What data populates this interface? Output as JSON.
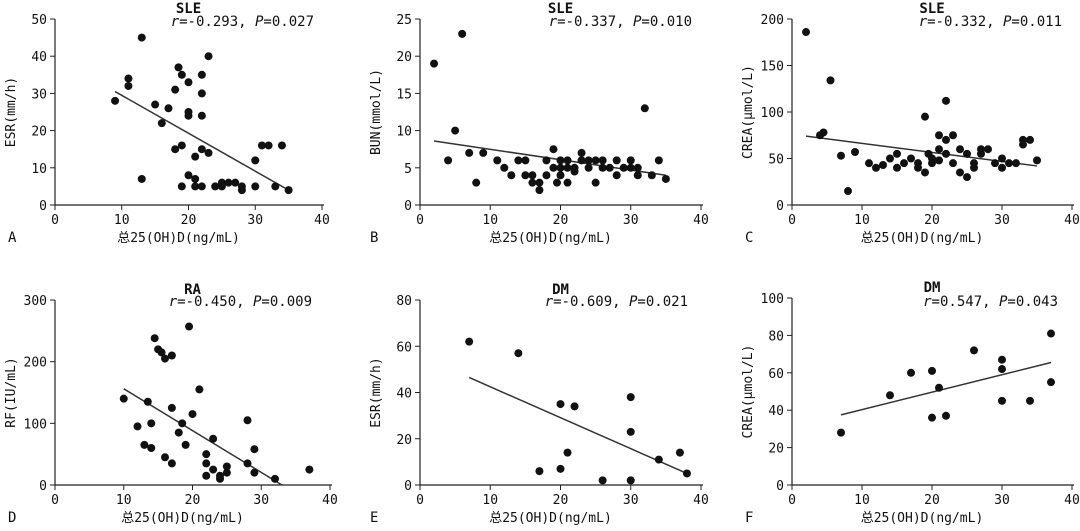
{
  "figure": {
    "x_axis_label": "总25(OH)D(ng/mL)"
  },
  "chart_data": [
    {
      "type": "scatter",
      "panel": "A",
      "title": "SLE",
      "stat": {
        "r_label": "r",
        "r_value": "=-0.293, ",
        "p_label": "P",
        "p_value": "=0.027"
      },
      "xlabel": "总25(OH)D(ng/mL)",
      "ylabel": "ESR(mm/h)",
      "xlim": [
        0,
        40
      ],
      "ylim": [
        0,
        50
      ],
      "xticks": [
        0,
        10,
        20,
        30,
        40
      ],
      "yticks": [
        0,
        10,
        20,
        30,
        40,
        50
      ],
      "trendline": [
        [
          9,
          30.5
        ],
        [
          35,
          4
        ]
      ],
      "points": [
        [
          9,
          28
        ],
        [
          11,
          32
        ],
        [
          11,
          34
        ],
        [
          13,
          45
        ],
        [
          13,
          7
        ],
        [
          15,
          27
        ],
        [
          16,
          22
        ],
        [
          17,
          26
        ],
        [
          18,
          31
        ],
        [
          18,
          15
        ],
        [
          18.5,
          37
        ],
        [
          19,
          35
        ],
        [
          19,
          16
        ],
        [
          19,
          5
        ],
        [
          20,
          33
        ],
        [
          20,
          25
        ],
        [
          20,
          24
        ],
        [
          20,
          8
        ],
        [
          21,
          13
        ],
        [
          21,
          7
        ],
        [
          21,
          5
        ],
        [
          22,
          35
        ],
        [
          22,
          30
        ],
        [
          22,
          24
        ],
        [
          22,
          15
        ],
        [
          22,
          5
        ],
        [
          23,
          40
        ],
        [
          23,
          14
        ],
        [
          24,
          5
        ],
        [
          25,
          5
        ],
        [
          25,
          6
        ],
        [
          26,
          6
        ],
        [
          27,
          6
        ],
        [
          28,
          4
        ],
        [
          28,
          5
        ],
        [
          30,
          12
        ],
        [
          30,
          5
        ],
        [
          31,
          16
        ],
        [
          32,
          16
        ],
        [
          33,
          5
        ],
        [
          34,
          16
        ],
        [
          35,
          4
        ]
      ]
    },
    {
      "type": "scatter",
      "panel": "B",
      "title": "SLE",
      "stat": {
        "r_label": "r",
        "r_value": "=-0.337, ",
        "p_label": "P",
        "p_value": "=0.010"
      },
      "xlabel": "总25(OH)D(ng/mL)",
      "ylabel": "BUN(mmol/L)",
      "xlim": [
        0,
        40
      ],
      "ylim": [
        0,
        25
      ],
      "xticks": [
        0,
        10,
        20,
        30,
        40
      ],
      "yticks": [
        0,
        5,
        10,
        15,
        20,
        25
      ],
      "trendline": [
        [
          2,
          8.6
        ],
        [
          35,
          4
        ]
      ],
      "points": [
        [
          2,
          19
        ],
        [
          4,
          6
        ],
        [
          5,
          10
        ],
        [
          6,
          23
        ],
        [
          7,
          7
        ],
        [
          8,
          3
        ],
        [
          9,
          7
        ],
        [
          11,
          6
        ],
        [
          12,
          5
        ],
        [
          13,
          4
        ],
        [
          14,
          6
        ],
        [
          15,
          4
        ],
        [
          15,
          6
        ],
        [
          16,
          3
        ],
        [
          16,
          4
        ],
        [
          17,
          2
        ],
        [
          17,
          3
        ],
        [
          18,
          6
        ],
        [
          18,
          4
        ],
        [
          19,
          7.5
        ],
        [
          19,
          5
        ],
        [
          19.5,
          3
        ],
        [
          20,
          6
        ],
        [
          20,
          5
        ],
        [
          20,
          4
        ],
        [
          21,
          3
        ],
        [
          21,
          5
        ],
        [
          21,
          6
        ],
        [
          22,
          4.5
        ],
        [
          22,
          5
        ],
        [
          23,
          6
        ],
        [
          23,
          7
        ],
        [
          24,
          5
        ],
        [
          24,
          6
        ],
        [
          25,
          6
        ],
        [
          25,
          3
        ],
        [
          26,
          5
        ],
        [
          26,
          6
        ],
        [
          27,
          5
        ],
        [
          28,
          6
        ],
        [
          28,
          4
        ],
        [
          29,
          5
        ],
        [
          30,
          6
        ],
        [
          30,
          5
        ],
        [
          31,
          4
        ],
        [
          31,
          5
        ],
        [
          32,
          13
        ],
        [
          33,
          4
        ],
        [
          34,
          6
        ],
        [
          35,
          3.5
        ]
      ]
    },
    {
      "type": "scatter",
      "panel": "C",
      "title": "SLE",
      "stat": {
        "r_label": "r",
        "r_value": "=-0.332, ",
        "p_label": "P",
        "p_value": "=0.011"
      },
      "xlabel": "总25(OH)D(ng/mL)",
      "ylabel": "CREA(μmol/L)",
      "xlim": [
        0,
        40
      ],
      "ylim": [
        0,
        200
      ],
      "xticks": [
        0,
        10,
        20,
        30,
        40
      ],
      "yticks": [
        0,
        50,
        100,
        150,
        200
      ],
      "trendline": [
        [
          2,
          74
        ],
        [
          35,
          42
        ]
      ],
      "points": [
        [
          2,
          186
        ],
        [
          4,
          75
        ],
        [
          4.5,
          78
        ],
        [
          5.5,
          134
        ],
        [
          7,
          53
        ],
        [
          8,
          15
        ],
        [
          9,
          57
        ],
        [
          11,
          45
        ],
        [
          12,
          40
        ],
        [
          13,
          43
        ],
        [
          14,
          50
        ],
        [
          15,
          55
        ],
        [
          15,
          40
        ],
        [
          16,
          45
        ],
        [
          17,
          50
        ],
        [
          18,
          40
        ],
        [
          18,
          45
        ],
        [
          19,
          35
        ],
        [
          19,
          95
        ],
        [
          19.5,
          55
        ],
        [
          20,
          45
        ],
        [
          20,
          50
        ],
        [
          21,
          75
        ],
        [
          21,
          60
        ],
        [
          21,
          48
        ],
        [
          22,
          55
        ],
        [
          22,
          112
        ],
        [
          22,
          70
        ],
        [
          23,
          45
        ],
        [
          23,
          75
        ],
        [
          24,
          60
        ],
        [
          24,
          35
        ],
        [
          25,
          55
        ],
        [
          25,
          30
        ],
        [
          26,
          40
        ],
        [
          26,
          45
        ],
        [
          27,
          60
        ],
        [
          27,
          55
        ],
        [
          28,
          60
        ],
        [
          29,
          45
        ],
        [
          30,
          50
        ],
        [
          30,
          40
        ],
        [
          31,
          45
        ],
        [
          32,
          45
        ],
        [
          33,
          70
        ],
        [
          33,
          65
        ],
        [
          34,
          70
        ],
        [
          35,
          48
        ]
      ]
    },
    {
      "type": "scatter",
      "panel": "D",
      "title": "RA",
      "stat": {
        "r_label": "r",
        "r_value": "=-0.450, ",
        "p_label": "P",
        "p_value": "=0.009"
      },
      "xlabel": "总25(OH)D(ng/mL)",
      "ylabel": "RF(IU/mL)",
      "xlim": [
        0,
        40
      ],
      "ylim": [
        0,
        300
      ],
      "xticks": [
        0,
        10,
        20,
        30,
        40
      ],
      "yticks": [
        0,
        100,
        200,
        300
      ],
      "trendline": [
        [
          10,
          156
        ],
        [
          33,
          0
        ]
      ],
      "points": [
        [
          10,
          140
        ],
        [
          12,
          95
        ],
        [
          13,
          65
        ],
        [
          13.5,
          135
        ],
        [
          14,
          60
        ],
        [
          14,
          100
        ],
        [
          14.5,
          238
        ],
        [
          15,
          220
        ],
        [
          15.5,
          215
        ],
        [
          16,
          45
        ],
        [
          16,
          205
        ],
        [
          17,
          210
        ],
        [
          17,
          35
        ],
        [
          17,
          125
        ],
        [
          18,
          85
        ],
        [
          18.5,
          100
        ],
        [
          19,
          65
        ],
        [
          19.5,
          257
        ],
        [
          20,
          115
        ],
        [
          21,
          155
        ],
        [
          22,
          50
        ],
        [
          22,
          15
        ],
        [
          22,
          35
        ],
        [
          23,
          25
        ],
        [
          23,
          75
        ],
        [
          24,
          10
        ],
        [
          24,
          15
        ],
        [
          25,
          30
        ],
        [
          25,
          20
        ],
        [
          28,
          105
        ],
        [
          28,
          35
        ],
        [
          29,
          20
        ],
        [
          29,
          58
        ],
        [
          32,
          10
        ],
        [
          37,
          25
        ]
      ]
    },
    {
      "type": "scatter",
      "panel": "E",
      "title": "DM",
      "stat": {
        "r_label": "r",
        "r_value": "=-0.609, ",
        "p_label": "P",
        "p_value": "=0.021"
      },
      "xlabel": "总25(OH)D(ng/mL)",
      "ylabel": "ESR(mm/h)",
      "xlim": [
        0,
        40
      ],
      "ylim": [
        0,
        80
      ],
      "xticks": [
        0,
        10,
        20,
        30,
        40
      ],
      "yticks": [
        0,
        20,
        40,
        60,
        80
      ],
      "trendline": [
        [
          7,
          46.5
        ],
        [
          38,
          5
        ]
      ],
      "points": [
        [
          7,
          62
        ],
        [
          14,
          57
        ],
        [
          17,
          6
        ],
        [
          20,
          7
        ],
        [
          20,
          35
        ],
        [
          21,
          14
        ],
        [
          22,
          34
        ],
        [
          26,
          2
        ],
        [
          30,
          38
        ],
        [
          30,
          23
        ],
        [
          30,
          2
        ],
        [
          34,
          11
        ],
        [
          37,
          14
        ],
        [
          38,
          5
        ]
      ]
    },
    {
      "type": "scatter",
      "panel": "F",
      "title": "DM",
      "stat": {
        "r_label": "r",
        "r_value": "=0.547, ",
        "p_label": "P",
        "p_value": "=0.043"
      },
      "xlabel": "总25(OH)D(ng/mL)",
      "ylabel": "CREA(μmol/L)",
      "xlim": [
        0,
        40
      ],
      "ylim": [
        0,
        100
      ],
      "xticks": [
        0,
        10,
        20,
        30,
        40
      ],
      "yticks": [
        0,
        20,
        40,
        60,
        80,
        100
      ],
      "trendline": [
        [
          7,
          37.5
        ],
        [
          37,
          65.5
        ]
      ],
      "points": [
        [
          7,
          28
        ],
        [
          14,
          48
        ],
        [
          17,
          60
        ],
        [
          20,
          61
        ],
        [
          20,
          36
        ],
        [
          21,
          52
        ],
        [
          22,
          37
        ],
        [
          26,
          72
        ],
        [
          30,
          67
        ],
        [
          30,
          62
        ],
        [
          30,
          45
        ],
        [
          34,
          45
        ],
        [
          37,
          55
        ],
        [
          37,
          81
        ]
      ]
    }
  ]
}
